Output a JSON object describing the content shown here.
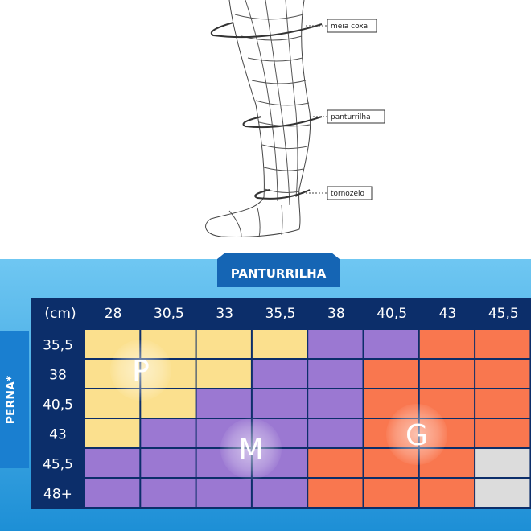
{
  "illustration": {
    "labels": [
      "meia coxa",
      "panturrilha",
      "tornozelo"
    ]
  },
  "table": {
    "column_title": "PANTURRILHA",
    "row_title": "PERNA*",
    "corner": "(cm)",
    "columns": [
      "28",
      "30,5",
      "33",
      "35,5",
      "38",
      "40,5",
      "43",
      "45,5"
    ],
    "rows": [
      "35,5",
      "38",
      "40,5",
      "43",
      "45,5",
      "48+"
    ],
    "sizes": [
      {
        "label": "P",
        "color": "#fbe08e"
      },
      {
        "label": "M",
        "color": "#9b78d2"
      },
      {
        "label": "G",
        "color": "#f9774f"
      }
    ],
    "empty_color": "#dcdcdc",
    "cells": [
      [
        "P",
        "P",
        "P",
        "P",
        "M",
        "M",
        "G",
        "G"
      ],
      [
        "P",
        "P",
        "P",
        "M",
        "M",
        "G",
        "G",
        "G"
      ],
      [
        "P",
        "P",
        "M",
        "M",
        "M",
        "G",
        "G",
        "G"
      ],
      [
        "P",
        "M",
        "M",
        "M",
        "M",
        "G",
        "G",
        "G"
      ],
      [
        "M",
        "M",
        "M",
        "M",
        "G",
        "G",
        "G",
        null
      ],
      [
        "M",
        "M",
        "M",
        "M",
        "G",
        "G",
        "G",
        null
      ]
    ]
  }
}
